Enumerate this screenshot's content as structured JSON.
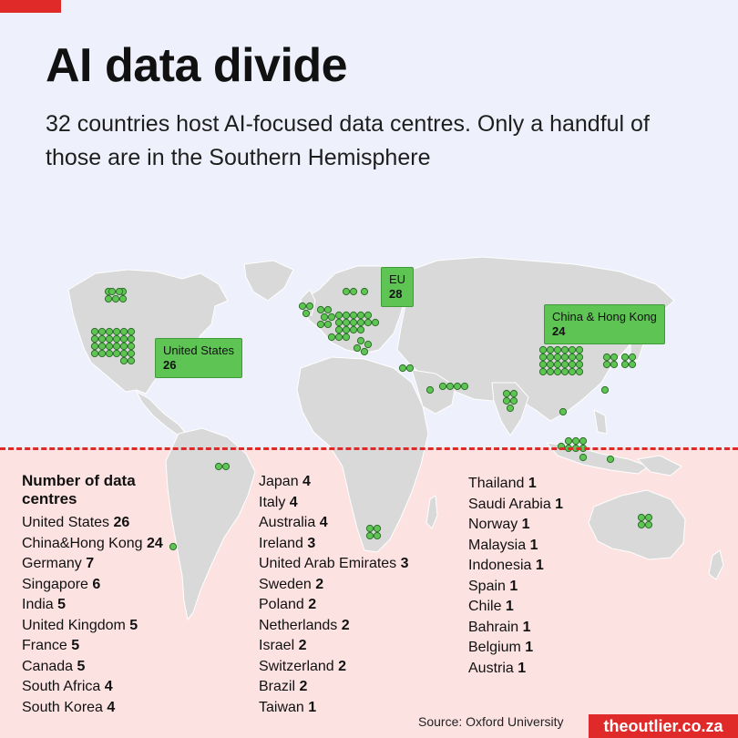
{
  "title": "AI data divide",
  "subtitle": "32 countries host AI-focused data centres. Only a handful of those are in the Southern Hemisphere",
  "callouts": {
    "us": {
      "name": "United States",
      "count": "26"
    },
    "eu": {
      "name": "EU",
      "count": "28"
    },
    "china": {
      "name": "China & Hong Kong",
      "count": "24"
    }
  },
  "legend": {
    "title": "Number of data centres",
    "columns": [
      [
        {
          "name": "United States",
          "count": "26"
        },
        {
          "name": "China&Hong Kong",
          "count": "24"
        },
        {
          "name": "Germany",
          "count": "7"
        },
        {
          "name": "Singapore",
          "count": "6"
        },
        {
          "name": "India",
          "count": "5"
        },
        {
          "name": "United Kingdom",
          "count": "5"
        },
        {
          "name": "France",
          "count": "5"
        },
        {
          "name": "Canada",
          "count": "5"
        },
        {
          "name": "South Africa",
          "count": "4"
        },
        {
          "name": "South Korea",
          "count": "4"
        }
      ],
      [
        {
          "name": "Japan",
          "count": "4"
        },
        {
          "name": "Italy",
          "count": "4"
        },
        {
          "name": "Australia",
          "count": "4"
        },
        {
          "name": "Ireland",
          "count": "3"
        },
        {
          "name": "United Arab Emirates",
          "count": "3"
        },
        {
          "name": "Sweden",
          "count": "2"
        },
        {
          "name": "Poland",
          "count": "2"
        },
        {
          "name": "Netherlands",
          "count": "2"
        },
        {
          "name": "Israel",
          "count": "2"
        },
        {
          "name": "Switzerland",
          "count": "2"
        },
        {
          "name": "Brazil",
          "count": "2"
        },
        {
          "name": "Taiwan",
          "count": "1"
        }
      ],
      [
        {
          "name": "Thailand",
          "count": "1"
        },
        {
          "name": "Saudi Arabia",
          "count": "1"
        },
        {
          "name": "Norway",
          "count": "1"
        },
        {
          "name": "Malaysia",
          "count": "1"
        },
        {
          "name": "Indonesia",
          "count": "1"
        },
        {
          "name": "Spain",
          "count": "1"
        },
        {
          "name": "Chile",
          "count": "1"
        },
        {
          "name": "Bahrain",
          "count": "1"
        },
        {
          "name": "Belgium",
          "count": "1"
        },
        {
          "name": "Austria",
          "count": "1"
        }
      ]
    ]
  },
  "source": "Source: Oxford University",
  "brand": "theoutlier.co.za",
  "colors": {
    "land": "#d9d9d9",
    "dot": "#5ec454",
    "accent": "#e02a2a",
    "north_bg": "#eef0fb",
    "south_bg": "#fde2e2"
  }
}
